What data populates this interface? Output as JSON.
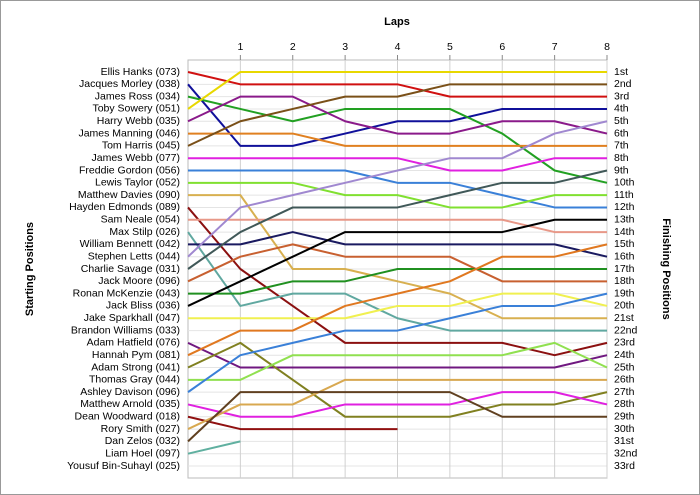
{
  "chart_data": {
    "type": "line",
    "x_label": "Laps",
    "y_label": "Starting Positions",
    "y2_label": "Finishing Positions",
    "x": [
      0,
      1,
      2,
      3,
      4,
      5,
      6,
      7,
      8
    ],
    "xlim": [
      0,
      8
    ],
    "xticks": [
      1,
      2,
      3,
      4,
      5,
      6,
      7,
      8
    ],
    "ylim": [
      1,
      33
    ],
    "inverted_y": true,
    "grid": true,
    "yticks": [
      {
        "value": 1,
        "label": "1st"
      },
      {
        "value": 2,
        "label": "2nd"
      },
      {
        "value": 3,
        "label": "3rd"
      },
      {
        "value": 4,
        "label": "4th"
      },
      {
        "value": 5,
        "label": "5th"
      },
      {
        "value": 6,
        "label": "6th"
      },
      {
        "value": 7,
        "label": "7th"
      },
      {
        "value": 8,
        "label": "8th"
      },
      {
        "value": 9,
        "label": "9th"
      },
      {
        "value": 10,
        "label": "10th"
      },
      {
        "value": 11,
        "label": "11th"
      },
      {
        "value": 12,
        "label": "12th"
      },
      {
        "value": 13,
        "label": "13th"
      },
      {
        "value": 14,
        "label": "14th"
      },
      {
        "value": 15,
        "label": "15th"
      },
      {
        "value": 16,
        "label": "16th"
      },
      {
        "value": 17,
        "label": "17th"
      },
      {
        "value": 18,
        "label": "18th"
      },
      {
        "value": 19,
        "label": "19th"
      },
      {
        "value": 20,
        "label": "20th"
      },
      {
        "value": 21,
        "label": "21st"
      },
      {
        "value": 22,
        "label": "22nd"
      },
      {
        "value": 23,
        "label": "23rd"
      },
      {
        "value": 24,
        "label": "24th"
      },
      {
        "value": 25,
        "label": "25th"
      },
      {
        "value": 26,
        "label": "26th"
      },
      {
        "value": 27,
        "label": "27th"
      },
      {
        "value": 28,
        "label": "28th"
      },
      {
        "value": 29,
        "label": "29th"
      },
      {
        "value": 30,
        "label": "30th"
      },
      {
        "value": 31,
        "label": "31st"
      },
      {
        "value": 32,
        "label": "32nd"
      },
      {
        "value": 33,
        "label": "33rd"
      }
    ],
    "series": [
      {
        "name": "Ellis Hanks (073)",
        "color": "#d01010",
        "values": [
          1,
          2,
          2,
          2,
          2,
          3,
          3,
          3,
          3
        ]
      },
      {
        "name": "Jacques Morley (038)",
        "color": "#10109a",
        "values": [
          2,
          7,
          7,
          6,
          5,
          5,
          4,
          4,
          4
        ]
      },
      {
        "name": "James Ross (034)",
        "color": "#22a022",
        "values": [
          3,
          4,
          5,
          4,
          4,
          4,
          6,
          9,
          10
        ]
      },
      {
        "name": "Toby Sowery (051)",
        "color": "#e8d800",
        "values": [
          4,
          1,
          1,
          1,
          1,
          1,
          1,
          1,
          1
        ]
      },
      {
        "name": "Harry Webb (035)",
        "color": "#8a1a8a",
        "values": [
          5,
          3,
          3,
          5,
          6,
          6,
          5,
          5,
          6
        ]
      },
      {
        "name": "James Manning (046)",
        "color": "#e08020",
        "values": [
          6,
          6,
          6,
          7,
          7,
          7,
          7,
          7,
          7
        ]
      },
      {
        "name": "Tom Harris (045)",
        "color": "#7a5018",
        "values": [
          7,
          5,
          4,
          3,
          3,
          2,
          2,
          2,
          2
        ]
      },
      {
        "name": "James Webb (077)",
        "color": "#e020e0",
        "values": [
          8,
          8,
          8,
          8,
          8,
          9,
          9,
          8,
          8
        ]
      },
      {
        "name": "Freddie Gordon (056)",
        "color": "#3a80d8",
        "values": [
          9,
          9,
          9,
          9,
          10,
          10,
          11,
          12,
          12
        ]
      },
      {
        "name": "Lewis Taylor (052)",
        "color": "#80e030",
        "values": [
          10,
          10,
          10,
          11,
          11,
          12,
          12,
          11,
          11
        ]
      },
      {
        "name": "Matthew Davies (090)",
        "color": "#d8b050",
        "values": [
          11,
          11,
          17,
          17,
          18,
          19,
          21,
          21,
          21
        ]
      },
      {
        "name": "Hayden Edmonds (089)",
        "color": "#8b1010",
        "values": [
          12,
          17,
          20,
          23,
          23,
          23,
          23,
          24,
          23
        ]
      },
      {
        "name": "Sam Neale (054)",
        "color": "#e89888",
        "values": [
          13,
          13,
          13,
          13,
          13,
          13,
          13,
          14,
          14
        ]
      },
      {
        "name": "Max Stilp (026)",
        "color": "#60a8a0",
        "values": [
          14,
          20,
          19,
          19,
          21,
          22,
          22,
          22,
          22
        ]
      },
      {
        "name": "William Bennett (042)",
        "color": "#1a1a60",
        "values": [
          15,
          15,
          14,
          15,
          15,
          15,
          15,
          15,
          16
        ]
      },
      {
        "name": "Stephen Letts (044)",
        "color": "#a088d0",
        "values": [
          16,
          12,
          11,
          10,
          9,
          8,
          8,
          6,
          5
        ]
      },
      {
        "name": "Charlie Savage (031)",
        "color": "#405858",
        "values": [
          17,
          14,
          12,
          12,
          12,
          11,
          10,
          10,
          9
        ]
      },
      {
        "name": "Jack Moore (096)",
        "color": "#c86030",
        "values": [
          18,
          16,
          15,
          16,
          16,
          16,
          18,
          18,
          18
        ]
      },
      {
        "name": "Ronan McKenzie (043)",
        "color": "#209020",
        "values": [
          19,
          19,
          18,
          18,
          17,
          17,
          17,
          17,
          17
        ]
      },
      {
        "name": "Jack Bliss (036)",
        "color": "#000000",
        "values": [
          20,
          18,
          16,
          14,
          14,
          14,
          14,
          13,
          13
        ]
      },
      {
        "name": "Jake Sparkhall (047)",
        "color": "#f0f050",
        "values": [
          21,
          21,
          21,
          21,
          20,
          20,
          19,
          19,
          20
        ]
      },
      {
        "name": "Brandon Williams (033)",
        "color": "#4060c0",
        "values": [
          22,
          null,
          null,
          null,
          null,
          null,
          null,
          null,
          null
        ]
      },
      {
        "name": "Adam Hatfield (076)",
        "color": "#701880",
        "values": [
          23,
          25,
          25,
          25,
          25,
          25,
          25,
          25,
          24
        ]
      },
      {
        "name": "Hannah Pym (081)",
        "color": "#e07820",
        "values": [
          24,
          22,
          22,
          20,
          19,
          18,
          16,
          16,
          15
        ]
      },
      {
        "name": "Adam Strong (041)",
        "color": "#808020",
        "values": [
          25,
          23,
          26,
          29,
          29,
          29,
          28,
          28,
          27
        ]
      },
      {
        "name": "Thomas Gray (044)",
        "color": "#90e050",
        "values": [
          26,
          26,
          24,
          24,
          24,
          24,
          24,
          23,
          25
        ]
      },
      {
        "name": "Ashley Davison (096)",
        "color": "#3a80d8",
        "values": [
          27,
          24,
          23,
          22,
          22,
          21,
          20,
          20,
          19
        ]
      },
      {
        "name": "Matthew Arnold (035)",
        "color": "#e020e0",
        "values": [
          28,
          29,
          29,
          28,
          28,
          28,
          27,
          27,
          28
        ]
      },
      {
        "name": "Dean Woodward (018)",
        "color": "#901010",
        "values": [
          29,
          30,
          30,
          30,
          30,
          null,
          null,
          null,
          null
        ]
      },
      {
        "name": "Rory Smith (027)",
        "color": "#d8a850",
        "values": [
          30,
          28,
          28,
          26,
          26,
          26,
          26,
          26,
          26
        ]
      },
      {
        "name": "Dan Zelos (032)",
        "color": "#604020",
        "values": [
          31,
          27,
          27,
          27,
          27,
          27,
          29,
          29,
          29
        ]
      },
      {
        "name": "Liam Hoel (097)",
        "color": "#60b0a0",
        "values": [
          32,
          31,
          null,
          null,
          null,
          null,
          null,
          null,
          null
        ]
      },
      {
        "name": "Yousuf Bin-Suhayl (025)",
        "color": "#888888",
        "values": [
          33,
          null,
          null,
          null,
          null,
          null,
          null,
          null,
          null
        ]
      }
    ]
  }
}
